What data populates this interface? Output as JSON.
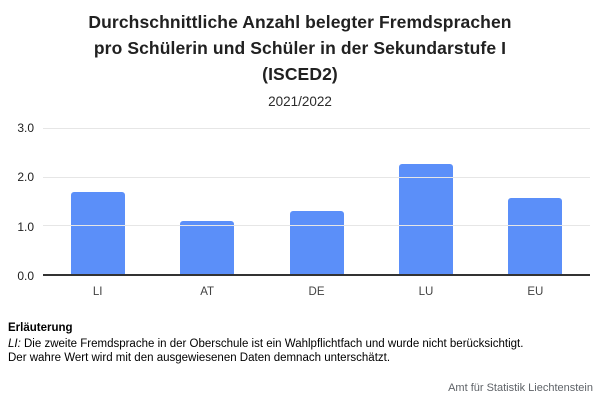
{
  "header": {
    "title_lines": [
      "Durchschnittliche Anzahl belegter Fremdsprachen",
      "pro Schülerin und Schüler in der Sekundarstufe I",
      "(ISCED2)"
    ],
    "subtitle": "2021/2022"
  },
  "chart_data": {
    "type": "bar",
    "title": "Durchschnittliche Anzahl belegter Fremdsprachen pro Schülerin und Schüler in der Sekundarstufe I (ISCED2)",
    "subtitle": "2021/2022",
    "categories": [
      "LI",
      "AT",
      "DE",
      "LU",
      "EU"
    ],
    "values": [
      1.68,
      1.08,
      1.29,
      2.27,
      1.57
    ],
    "xlabel": "",
    "ylabel": "",
    "ylim": [
      0,
      3.0
    ],
    "yticks": [
      "0.0",
      "1.0",
      "2.0",
      "3.0"
    ],
    "grid": true,
    "legend": "none",
    "bar_color": "#5B8FF9",
    "gridline_color": "#e6e6e6",
    "baseline_color": "#333333"
  },
  "footnote": {
    "heading": "Erläuterung",
    "line1_prefix": "LI:",
    "line1_text": " Die zweite Fremdsprache in der Oberschule ist ein Wahlpflichtfach und wurde nicht berücksichtigt.",
    "line2": "Der wahre Wert wird mit den ausgewiesenen Daten demnach unterschätzt.",
    "source": "Amt für Statistik Liechtenstein"
  }
}
